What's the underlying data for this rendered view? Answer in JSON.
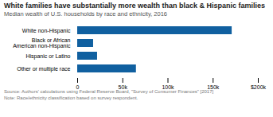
{
  "chart_data": {
    "type": "bar",
    "orientation": "horizontal",
    "title": "White families have substantially more wealth than black & Hispanic families",
    "subtitle": "Median wealth of U.S. households by race and ethnicity, 2016",
    "caption": "Source: Authors' calculations using Federal Reserve Board, \"Survey of Consumer Finances\" [2017]\nNote: Race/ethnicity classification based on survey respondent.",
    "categories": [
      "Other or multiple race",
      "Hispanic or Latino",
      "Black or African\nAmerican non-Hispanic",
      "White non-Hispanic"
    ],
    "values": [
      65000,
      22000,
      17600,
      171000
    ],
    "color": "#1060a0",
    "xlim": [
      0,
      200000
    ],
    "xticks": [
      0,
      {
        "value": 50000,
        "label": "50k"
      },
      {
        "value": 100000,
        "label": "100k"
      },
      {
        "value": 150000,
        "label": "150k"
      },
      {
        "value": 200000,
        "label": "$200k"
      }
    ],
    "grid": false
  }
}
